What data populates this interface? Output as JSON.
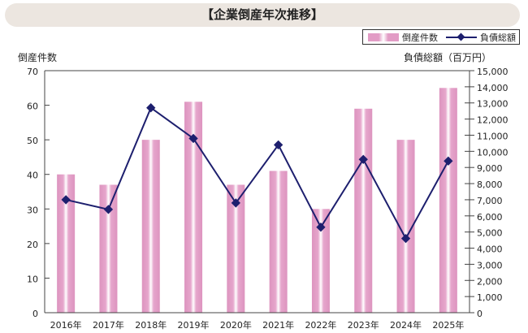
{
  "chart_data": {
    "type": "bar+line",
    "title": "【企業倒産年次推移】",
    "categories": [
      "2016年",
      "2017年",
      "2018年",
      "2019年",
      "2020年",
      "2021年",
      "2022年",
      "2023年",
      "2024年",
      "2025年"
    ],
    "series": [
      {
        "name": "倒産件数",
        "type": "bar",
        "axis": "left",
        "values": [
          40,
          37,
          50,
          61,
          37,
          41,
          30,
          59,
          50,
          65
        ]
      },
      {
        "name": "負債総額",
        "type": "line",
        "axis": "right",
        "values": [
          7000,
          6400,
          12700,
          10800,
          6800,
          10400,
          5300,
          9500,
          4600,
          9400
        ]
      }
    ],
    "ylabel_left": "倒産件数",
    "ylabel_right": "負債総額（百万円）",
    "ylim_left": [
      0,
      70
    ],
    "ylim_right": [
      0,
      15000
    ],
    "yticks_left": [
      "0",
      "10",
      "20",
      "30",
      "40",
      "50",
      "60",
      "70"
    ],
    "yticks_right": [
      "0",
      "1,000",
      "2,000",
      "3,000",
      "4,000",
      "5,000",
      "6,000",
      "7,000",
      "8,000",
      "9,000",
      "10,000",
      "11,000",
      "12,000",
      "13,000",
      "14,000",
      "15,000"
    ],
    "legend": "top-right",
    "grid": false,
    "colors": {
      "bar": "#e29cc5",
      "line": "#1d1f6e"
    }
  }
}
